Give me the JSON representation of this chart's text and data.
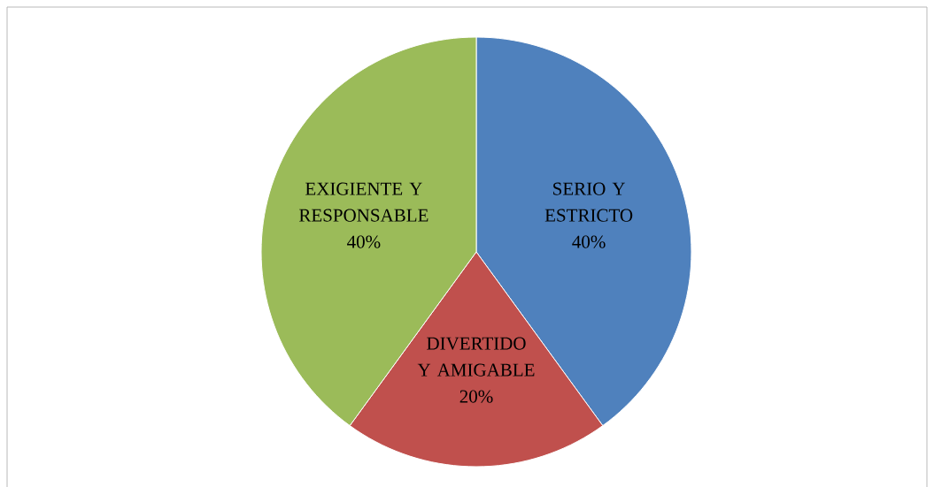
{
  "chart_data": {
    "type": "pie",
    "categories": [
      "SERIO Y ESTRICTO",
      "DIVERTIDO Y AMIGABLE",
      "EXIGIENTE Y RESPONSABLE"
    ],
    "values": [
      40,
      20,
      40
    ],
    "colors": [
      "#4f81bd",
      "#c0504d",
      "#9bbb59"
    ],
    "value_labels": [
      "40%",
      "20%",
      "40%"
    ]
  }
}
